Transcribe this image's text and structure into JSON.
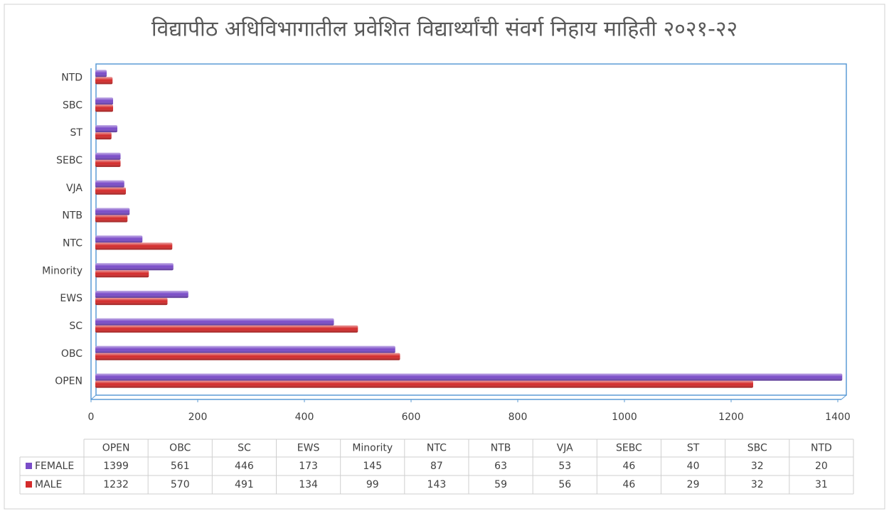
{
  "chart_data": {
    "type": "bar",
    "orientation": "horizontal",
    "title": "विद्यापीठ अधिविभागातील प्रवेशित विद्यार्थ्यांची संवर्ग निहाय माहिती २०२१-२२",
    "categories": [
      "OPEN",
      "OBC",
      "SC",
      "EWS",
      "Minority",
      "NTC",
      "NTB",
      "VJA",
      "SEBC",
      "ST",
      "SBC",
      "NTD"
    ],
    "series": [
      {
        "name": "FEMALE",
        "color": "#7a4cc8",
        "values": [
          1399,
          561,
          446,
          173,
          145,
          87,
          63,
          53,
          46,
          40,
          32,
          20
        ]
      },
      {
        "name": "MALE",
        "color": "#d42b2b",
        "values": [
          1232,
          570,
          491,
          134,
          99,
          143,
          59,
          56,
          46,
          29,
          32,
          31
        ]
      }
    ],
    "xlim": [
      0,
      1400
    ],
    "xticks": [
      0,
      200,
      400,
      600,
      800,
      1000,
      1200,
      1400
    ],
    "data_table": true
  }
}
